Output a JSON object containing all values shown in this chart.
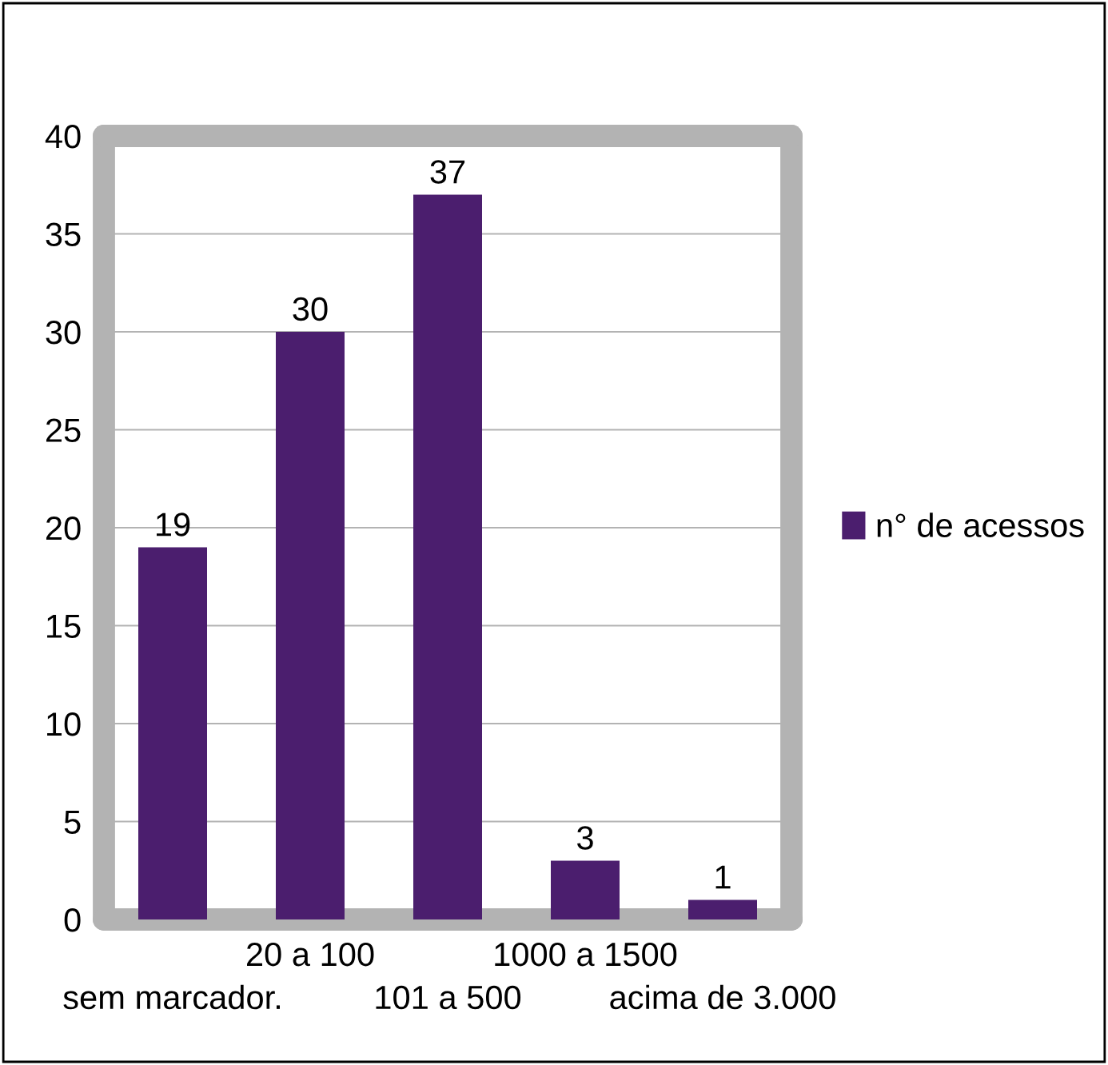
{
  "chart_data": {
    "type": "bar",
    "categories": [
      "sem marcador.",
      "20 a 100",
      "101 a 500",
      "1000 a 1500",
      "acima de 3.000"
    ],
    "series": [
      {
        "name": "n° de acessos",
        "color": "#4b1e6e",
        "values": [
          19,
          30,
          37,
          3,
          1
        ]
      }
    ],
    "ylim": [
      0,
      40
    ],
    "yticks": [
      0,
      5,
      10,
      15,
      20,
      25,
      30,
      35,
      40
    ],
    "grid": "y",
    "legend": "right",
    "data_labels": true
  }
}
